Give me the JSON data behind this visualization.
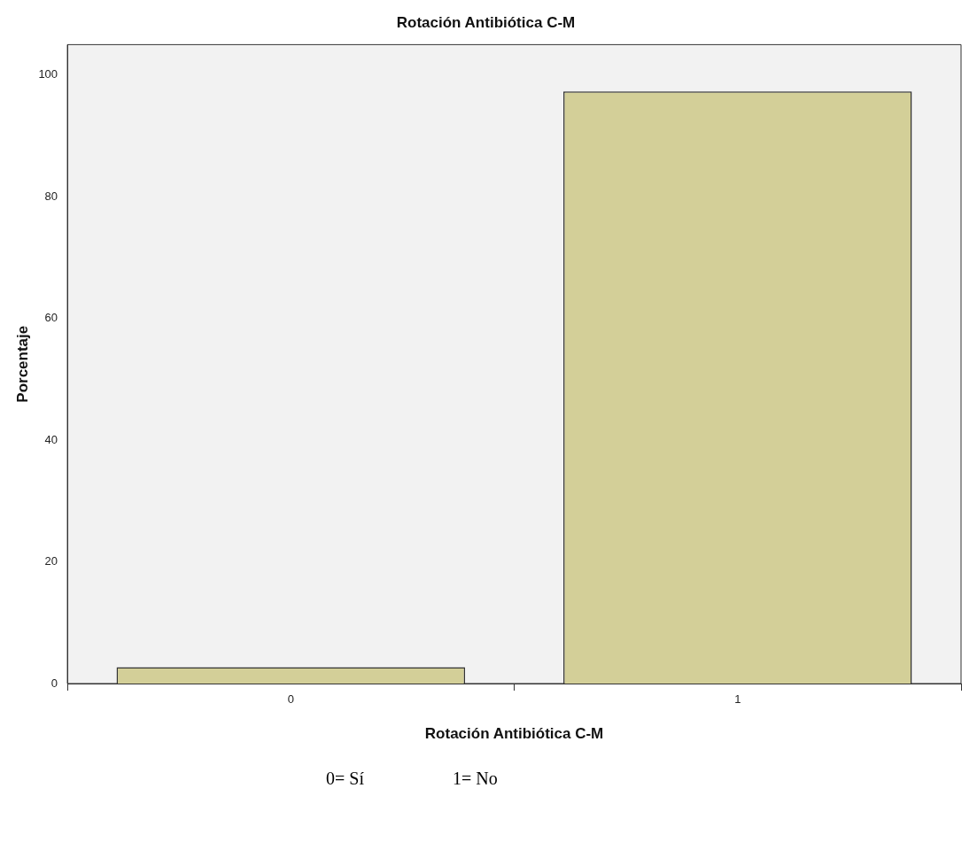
{
  "chart_data": {
    "type": "bar",
    "title": "Rotación Antibiótica C-M",
    "xlabel": "Rotación Antibiótica C-M",
    "ylabel": "Porcentaje",
    "categories": [
      "0",
      "1"
    ],
    "values": [
      2.7,
      97.3
    ],
    "color": "#d3cf98",
    "ylim": [
      0,
      105
    ],
    "yticks": [
      0,
      20,
      40,
      60,
      80,
      100
    ],
    "grid": false,
    "legend": false,
    "annotations": [
      "0= Sí                    1= No"
    ]
  }
}
